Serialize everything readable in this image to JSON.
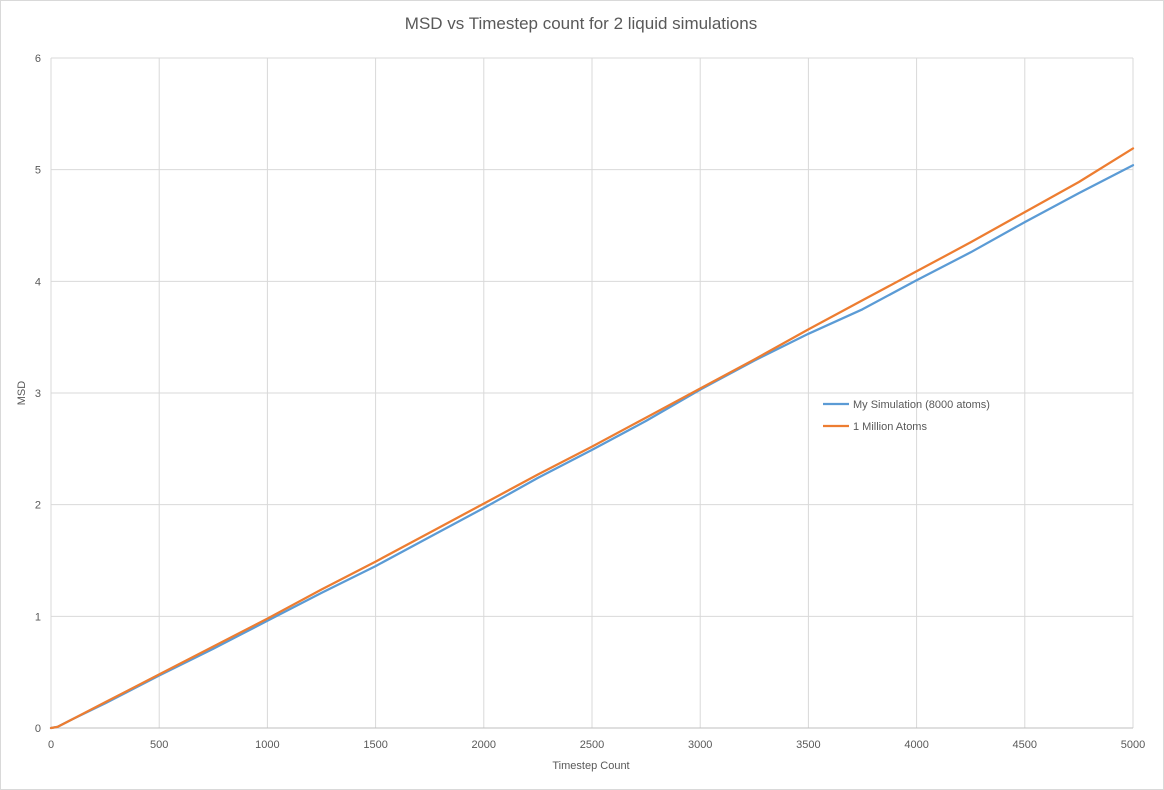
{
  "chart_data": {
    "type": "line",
    "title": "MSD vs Timestep count for 2 liquid simulations",
    "xlabel": "Timestep Count",
    "ylabel": "MSD",
    "xlim": [
      0,
      5000
    ],
    "ylim": [
      0,
      6
    ],
    "x_ticks": [
      "0",
      "500",
      "1000",
      "1500",
      "2000",
      "2500",
      "3000",
      "3500",
      "4000",
      "4500",
      "5000"
    ],
    "y_ticks": [
      "0",
      "1",
      "2",
      "3",
      "4",
      "5",
      "6"
    ],
    "grid": true,
    "legend_position": "right",
    "series": [
      {
        "name": "My Simulation (8000 atoms)",
        "color": "#5b9bd5",
        "x": [
          0,
          30,
          100,
          250,
          500,
          750,
          1000,
          1250,
          1500,
          1750,
          2000,
          2250,
          2500,
          2750,
          3000,
          3250,
          3500,
          3750,
          4000,
          4250,
          4500,
          4750,
          5000
        ],
        "y": [
          0,
          0.01,
          0.08,
          0.22,
          0.47,
          0.71,
          0.96,
          1.21,
          1.45,
          1.71,
          1.97,
          2.24,
          2.49,
          2.75,
          3.03,
          3.29,
          3.53,
          3.75,
          4.01,
          4.26,
          4.53,
          4.79,
          5.04
        ]
      },
      {
        "name": "1 Million Atoms",
        "color": "#ed7d31",
        "x": [
          0,
          30,
          100,
          250,
          500,
          750,
          1000,
          1250,
          1500,
          1750,
          2000,
          2250,
          2500,
          2750,
          3000,
          3250,
          3500,
          3750,
          4000,
          4250,
          4500,
          4750,
          5000
        ],
        "y": [
          0,
          0.01,
          0.08,
          0.23,
          0.48,
          0.73,
          0.98,
          1.24,
          1.49,
          1.75,
          2.01,
          2.27,
          2.52,
          2.78,
          3.04,
          3.3,
          3.57,
          3.83,
          4.09,
          4.35,
          4.62,
          4.89,
          5.19
        ]
      }
    ]
  }
}
